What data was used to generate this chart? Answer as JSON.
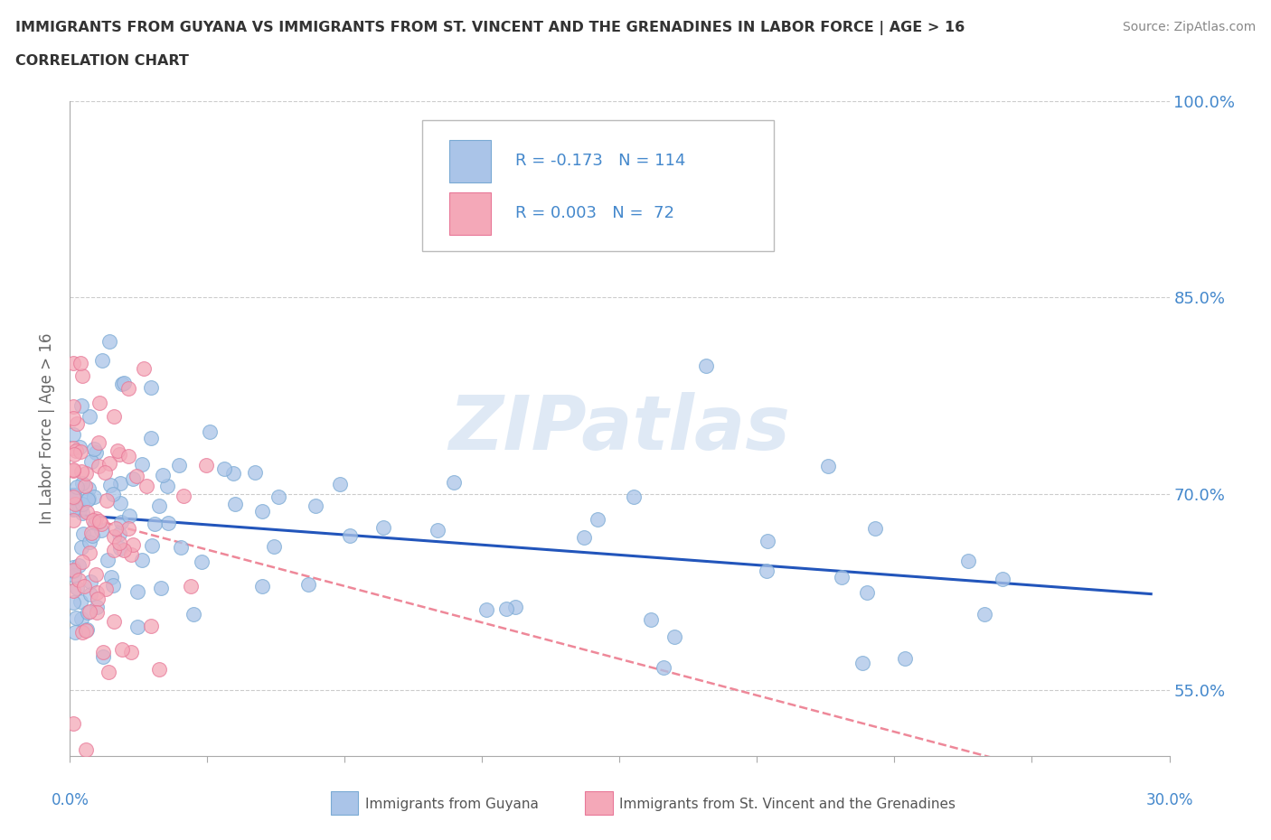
{
  "title_line1": "IMMIGRANTS FROM GUYANA VS IMMIGRANTS FROM ST. VINCENT AND THE GRENADINES IN LABOR FORCE | AGE > 16",
  "title_line2": "CORRELATION CHART",
  "source": "Source: ZipAtlas.com",
  "ylabel": "In Labor Force | Age > 16",
  "xmin": 0.0,
  "xmax": 0.3,
  "ymin": 0.5,
  "ymax": 1.0,
  "yticks": [
    0.55,
    0.7,
    0.85,
    1.0
  ],
  "ytick_labels": [
    "55.0%",
    "70.0%",
    "85.0%",
    "100.0%"
  ],
  "guyana_R": -0.173,
  "guyana_N": 114,
  "stvincent_R": 0.003,
  "stvincent_N": 72,
  "guyana_color": "#aac4e8",
  "stvincent_color": "#f4a8b8",
  "guyana_edge_color": "#7aaad4",
  "stvincent_edge_color": "#e87898",
  "guyana_line_color": "#2255bb",
  "stvincent_line_color": "#ee8899",
  "legend_label_guyana": "Immigrants from Guyana",
  "legend_label_stvincent": "Immigrants from St. Vincent and the Grenadines",
  "watermark": "ZIPatlas",
  "background_color": "#ffffff",
  "grid_color": "#cccccc",
  "title_color": "#333333",
  "axis_label_color": "#4488cc",
  "ylabel_color": "#666666"
}
